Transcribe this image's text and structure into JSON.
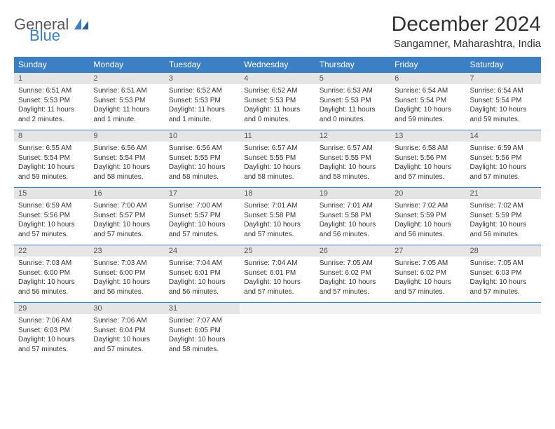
{
  "logo": {
    "general": "General",
    "blue": "Blue"
  },
  "title": "December 2024",
  "location": "Sangamner, Maharashtra, India",
  "colors": {
    "header_bg": "#3b7fc4",
    "header_text": "#ffffff",
    "daynum_bg": "#e5e5e5",
    "border": "#3b7fc4",
    "body_text": "#333333",
    "logo_gray": "#555555",
    "logo_blue": "#3b7fc4"
  },
  "dayNames": [
    "Sunday",
    "Monday",
    "Tuesday",
    "Wednesday",
    "Thursday",
    "Friday",
    "Saturday"
  ],
  "weeks": [
    [
      {
        "n": "1",
        "sr": "Sunrise: 6:51 AM",
        "ss": "Sunset: 5:53 PM",
        "dl": "Daylight: 11 hours and 2 minutes."
      },
      {
        "n": "2",
        "sr": "Sunrise: 6:51 AM",
        "ss": "Sunset: 5:53 PM",
        "dl": "Daylight: 11 hours and 1 minute."
      },
      {
        "n": "3",
        "sr": "Sunrise: 6:52 AM",
        "ss": "Sunset: 5:53 PM",
        "dl": "Daylight: 11 hours and 1 minute."
      },
      {
        "n": "4",
        "sr": "Sunrise: 6:52 AM",
        "ss": "Sunset: 5:53 PM",
        "dl": "Daylight: 11 hours and 0 minutes."
      },
      {
        "n": "5",
        "sr": "Sunrise: 6:53 AM",
        "ss": "Sunset: 5:53 PM",
        "dl": "Daylight: 11 hours and 0 minutes."
      },
      {
        "n": "6",
        "sr": "Sunrise: 6:54 AM",
        "ss": "Sunset: 5:54 PM",
        "dl": "Daylight: 10 hours and 59 minutes."
      },
      {
        "n": "7",
        "sr": "Sunrise: 6:54 AM",
        "ss": "Sunset: 5:54 PM",
        "dl": "Daylight: 10 hours and 59 minutes."
      }
    ],
    [
      {
        "n": "8",
        "sr": "Sunrise: 6:55 AM",
        "ss": "Sunset: 5:54 PM",
        "dl": "Daylight: 10 hours and 59 minutes."
      },
      {
        "n": "9",
        "sr": "Sunrise: 6:56 AM",
        "ss": "Sunset: 5:54 PM",
        "dl": "Daylight: 10 hours and 58 minutes."
      },
      {
        "n": "10",
        "sr": "Sunrise: 6:56 AM",
        "ss": "Sunset: 5:55 PM",
        "dl": "Daylight: 10 hours and 58 minutes."
      },
      {
        "n": "11",
        "sr": "Sunrise: 6:57 AM",
        "ss": "Sunset: 5:55 PM",
        "dl": "Daylight: 10 hours and 58 minutes."
      },
      {
        "n": "12",
        "sr": "Sunrise: 6:57 AM",
        "ss": "Sunset: 5:55 PM",
        "dl": "Daylight: 10 hours and 58 minutes."
      },
      {
        "n": "13",
        "sr": "Sunrise: 6:58 AM",
        "ss": "Sunset: 5:56 PM",
        "dl": "Daylight: 10 hours and 57 minutes."
      },
      {
        "n": "14",
        "sr": "Sunrise: 6:59 AM",
        "ss": "Sunset: 5:56 PM",
        "dl": "Daylight: 10 hours and 57 minutes."
      }
    ],
    [
      {
        "n": "15",
        "sr": "Sunrise: 6:59 AM",
        "ss": "Sunset: 5:56 PM",
        "dl": "Daylight: 10 hours and 57 minutes."
      },
      {
        "n": "16",
        "sr": "Sunrise: 7:00 AM",
        "ss": "Sunset: 5:57 PM",
        "dl": "Daylight: 10 hours and 57 minutes."
      },
      {
        "n": "17",
        "sr": "Sunrise: 7:00 AM",
        "ss": "Sunset: 5:57 PM",
        "dl": "Daylight: 10 hours and 57 minutes."
      },
      {
        "n": "18",
        "sr": "Sunrise: 7:01 AM",
        "ss": "Sunset: 5:58 PM",
        "dl": "Daylight: 10 hours and 57 minutes."
      },
      {
        "n": "19",
        "sr": "Sunrise: 7:01 AM",
        "ss": "Sunset: 5:58 PM",
        "dl": "Daylight: 10 hours and 56 minutes."
      },
      {
        "n": "20",
        "sr": "Sunrise: 7:02 AM",
        "ss": "Sunset: 5:59 PM",
        "dl": "Daylight: 10 hours and 56 minutes."
      },
      {
        "n": "21",
        "sr": "Sunrise: 7:02 AM",
        "ss": "Sunset: 5:59 PM",
        "dl": "Daylight: 10 hours and 56 minutes."
      }
    ],
    [
      {
        "n": "22",
        "sr": "Sunrise: 7:03 AM",
        "ss": "Sunset: 6:00 PM",
        "dl": "Daylight: 10 hours and 56 minutes."
      },
      {
        "n": "23",
        "sr": "Sunrise: 7:03 AM",
        "ss": "Sunset: 6:00 PM",
        "dl": "Daylight: 10 hours and 56 minutes."
      },
      {
        "n": "24",
        "sr": "Sunrise: 7:04 AM",
        "ss": "Sunset: 6:01 PM",
        "dl": "Daylight: 10 hours and 56 minutes."
      },
      {
        "n": "25",
        "sr": "Sunrise: 7:04 AM",
        "ss": "Sunset: 6:01 PM",
        "dl": "Daylight: 10 hours and 57 minutes."
      },
      {
        "n": "26",
        "sr": "Sunrise: 7:05 AM",
        "ss": "Sunset: 6:02 PM",
        "dl": "Daylight: 10 hours and 57 minutes."
      },
      {
        "n": "27",
        "sr": "Sunrise: 7:05 AM",
        "ss": "Sunset: 6:02 PM",
        "dl": "Daylight: 10 hours and 57 minutes."
      },
      {
        "n": "28",
        "sr": "Sunrise: 7:05 AM",
        "ss": "Sunset: 6:03 PM",
        "dl": "Daylight: 10 hours and 57 minutes."
      }
    ],
    [
      {
        "n": "29",
        "sr": "Sunrise: 7:06 AM",
        "ss": "Sunset: 6:03 PM",
        "dl": "Daylight: 10 hours and 57 minutes."
      },
      {
        "n": "30",
        "sr": "Sunrise: 7:06 AM",
        "ss": "Sunset: 6:04 PM",
        "dl": "Daylight: 10 hours and 57 minutes."
      },
      {
        "n": "31",
        "sr": "Sunrise: 7:07 AM",
        "ss": "Sunset: 6:05 PM",
        "dl": "Daylight: 10 hours and 58 minutes."
      },
      {
        "empty": true
      },
      {
        "empty": true
      },
      {
        "empty": true
      },
      {
        "empty": true
      }
    ]
  ]
}
